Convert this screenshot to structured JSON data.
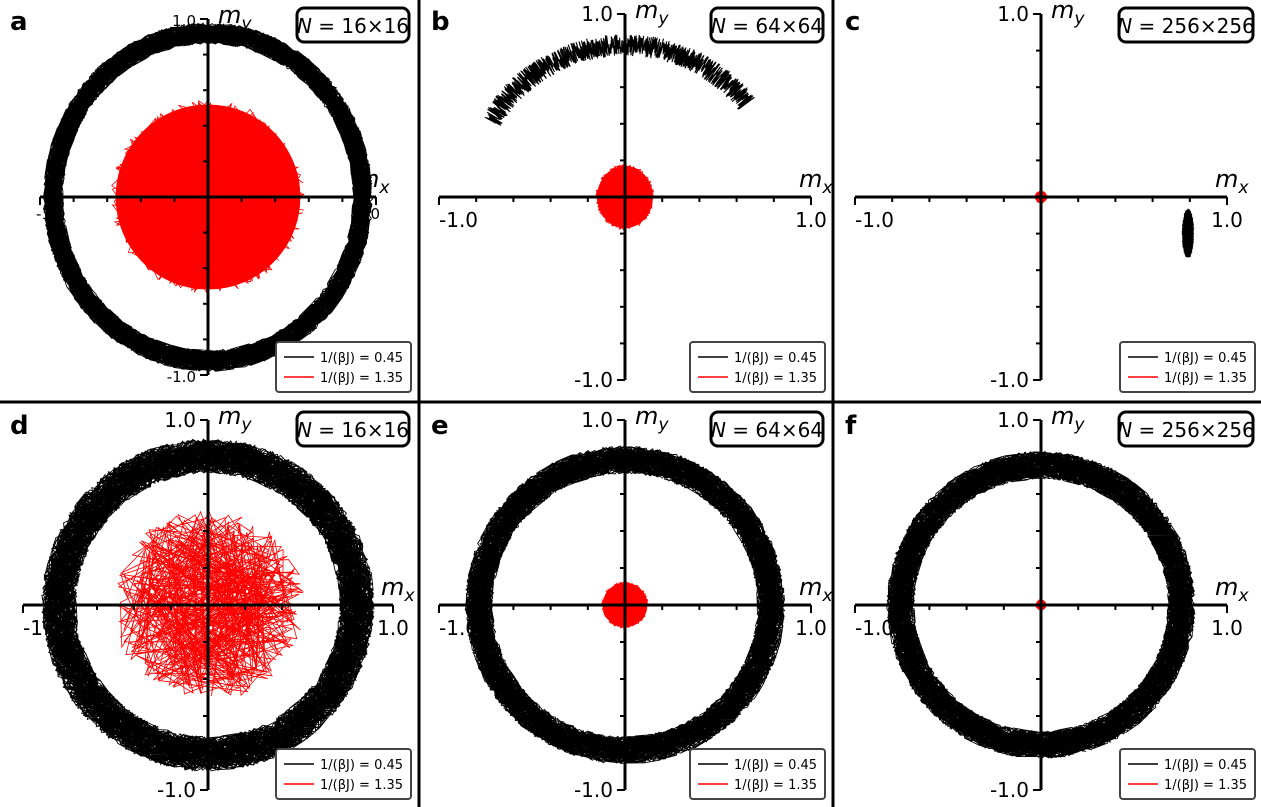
{
  "chart_data": [
    {
      "panel_label": "a",
      "type": "scatter",
      "system_size": "N = 16×16",
      "xlabel": "m_x",
      "ylabel": "m_y",
      "xlim": [
        -1.0,
        1.0
      ],
      "ylim": [
        -1.0,
        1.0
      ],
      "x_tick_labels": [
        "-1.0",
        "1.0"
      ],
      "y_tick_labels": [
        "-1.0",
        "1.0"
      ],
      "grid": false,
      "legend_position": "bottom-right",
      "series": [
        {
          "name": "1/(βJ) = 0.45",
          "color": "#000000",
          "shape": "ring",
          "center": [
            0.0,
            0.0
          ],
          "radius_inner": 0.86,
          "radius_outer": 0.98,
          "lines": 1,
          "closed": true
        },
        {
          "name": "1/(βJ) = 1.35",
          "color": "#ff0000",
          "shape": "filled-blob",
          "center": [
            0.0,
            0.0
          ],
          "radius_x": 0.55,
          "radius_y": 0.52
        }
      ]
    },
    {
      "panel_label": "b",
      "type": "scatter",
      "system_size": "N = 64×64",
      "xlabel": "m_x",
      "ylabel": "m_y",
      "xlim": [
        -1.0,
        1.0
      ],
      "ylim": [
        -1.0,
        1.0
      ],
      "x_tick_labels": [
        "-1.0",
        "1.0"
      ],
      "y_tick_labels": [
        "-1.0",
        "1.0"
      ],
      "grid": false,
      "legend_position": "bottom-right",
      "series": [
        {
          "name": "1/(βJ) = 0.45",
          "color": "#000000",
          "shape": "arc",
          "center": [
            0.0,
            0.0
          ],
          "radius": 0.83,
          "arc_from_deg": 38,
          "arc_to_deg": 150,
          "thickness": 0.06
        },
        {
          "name": "1/(βJ) = 1.35",
          "color": "#ff0000",
          "shape": "filled-blob",
          "center": [
            0.0,
            0.0
          ],
          "radius_x": 0.15,
          "radius_y": 0.17
        }
      ]
    },
    {
      "panel_label": "c",
      "type": "scatter",
      "system_size": "N = 256×256",
      "xlabel": "m_x",
      "ylabel": "m_y",
      "xlim": [
        -1.0,
        1.0
      ],
      "ylim": [
        -1.0,
        1.0
      ],
      "x_tick_labels": [
        "-1.0",
        "1.0"
      ],
      "y_tick_labels": [
        "-1.0",
        "1.0"
      ],
      "grid": false,
      "legend_position": "bottom-right",
      "series": [
        {
          "name": "1/(βJ) = 0.45",
          "color": "#000000",
          "shape": "filled-blob",
          "center": [
            0.79,
            -0.2
          ],
          "radius_x": 0.03,
          "radius_y": 0.13
        },
        {
          "name": "1/(βJ) = 1.35",
          "color": "#ff0000",
          "shape": "filled-blob",
          "center": [
            0.0,
            0.0
          ],
          "radius_x": 0.03,
          "radius_y": 0.03
        }
      ]
    },
    {
      "panel_label": "d",
      "type": "scatter",
      "system_size": "N = 16×16",
      "xlabel": "m_x",
      "ylabel": "m_y",
      "xlim": [
        -1.0,
        1.0
      ],
      "ylim": [
        -1.0,
        1.0
      ],
      "x_tick_labels": [
        "-1.0",
        "1.0"
      ],
      "y_tick_labels": [
        "-1.0",
        "1.0"
      ],
      "grid": false,
      "legend_position": "bottom-right",
      "series": [
        {
          "name": "1/(βJ) = 0.45",
          "color": "#000000",
          "shape": "ring",
          "center": [
            0.0,
            0.0
          ],
          "radius_inner": 0.71,
          "radius_outer": 0.9,
          "lines": 1,
          "closed": true
        },
        {
          "name": "1/(βJ) = 1.35",
          "color": "#ff0000",
          "shape": "ring",
          "center": [
            0.0,
            0.0
          ],
          "radius_inner": 0.05,
          "radius_outer": 0.52,
          "lines": 1,
          "closed": false
        }
      ]
    },
    {
      "panel_label": "e",
      "type": "scatter",
      "system_size": "N = 64×64",
      "xlabel": "m_x",
      "ylabel": "m_y",
      "xlim": [
        -1.0,
        1.0
      ],
      "ylim": [
        -1.0,
        1.0
      ],
      "x_tick_labels": [
        "-1.0",
        "1.0"
      ],
      "y_tick_labels": [
        "-1.0",
        "1.0"
      ],
      "grid": false,
      "legend_position": "bottom-right",
      "series": [
        {
          "name": "1/(βJ) = 0.45",
          "color": "#000000",
          "shape": "ring",
          "center": [
            0.0,
            0.0
          ],
          "radius_inner": 0.71,
          "radius_outer": 0.86,
          "lines": 1,
          "closed": true
        },
        {
          "name": "1/(βJ) = 1.35",
          "color": "#ff0000",
          "shape": "filled-blob",
          "center": [
            0.0,
            0.0
          ],
          "radius_x": 0.12,
          "radius_y": 0.12
        }
      ]
    },
    {
      "panel_label": "f",
      "type": "scatter",
      "system_size": "N = 256×256",
      "xlabel": "m_x",
      "ylabel": "m_y",
      "xlim": [
        -1.0,
        1.0
      ],
      "ylim": [
        -1.0,
        1.0
      ],
      "x_tick_labels": [
        "-1.0",
        "1.0"
      ],
      "y_tick_labels": [
        "-1.0",
        "1.0"
      ],
      "grid": false,
      "legend_position": "bottom-right",
      "series": [
        {
          "name": "1/(βJ) = 0.45",
          "color": "#000000",
          "shape": "ring",
          "center": [
            0.0,
            0.0
          ],
          "radius_inner": 0.68,
          "radius_outer": 0.83,
          "lines": 1,
          "closed": true
        },
        {
          "name": "1/(βJ) = 1.35",
          "color": "#ff0000",
          "shape": "filled-blob",
          "center": [
            0.0,
            0.0
          ],
          "radius_x": 0.025,
          "radius_y": 0.025
        }
      ]
    }
  ]
}
